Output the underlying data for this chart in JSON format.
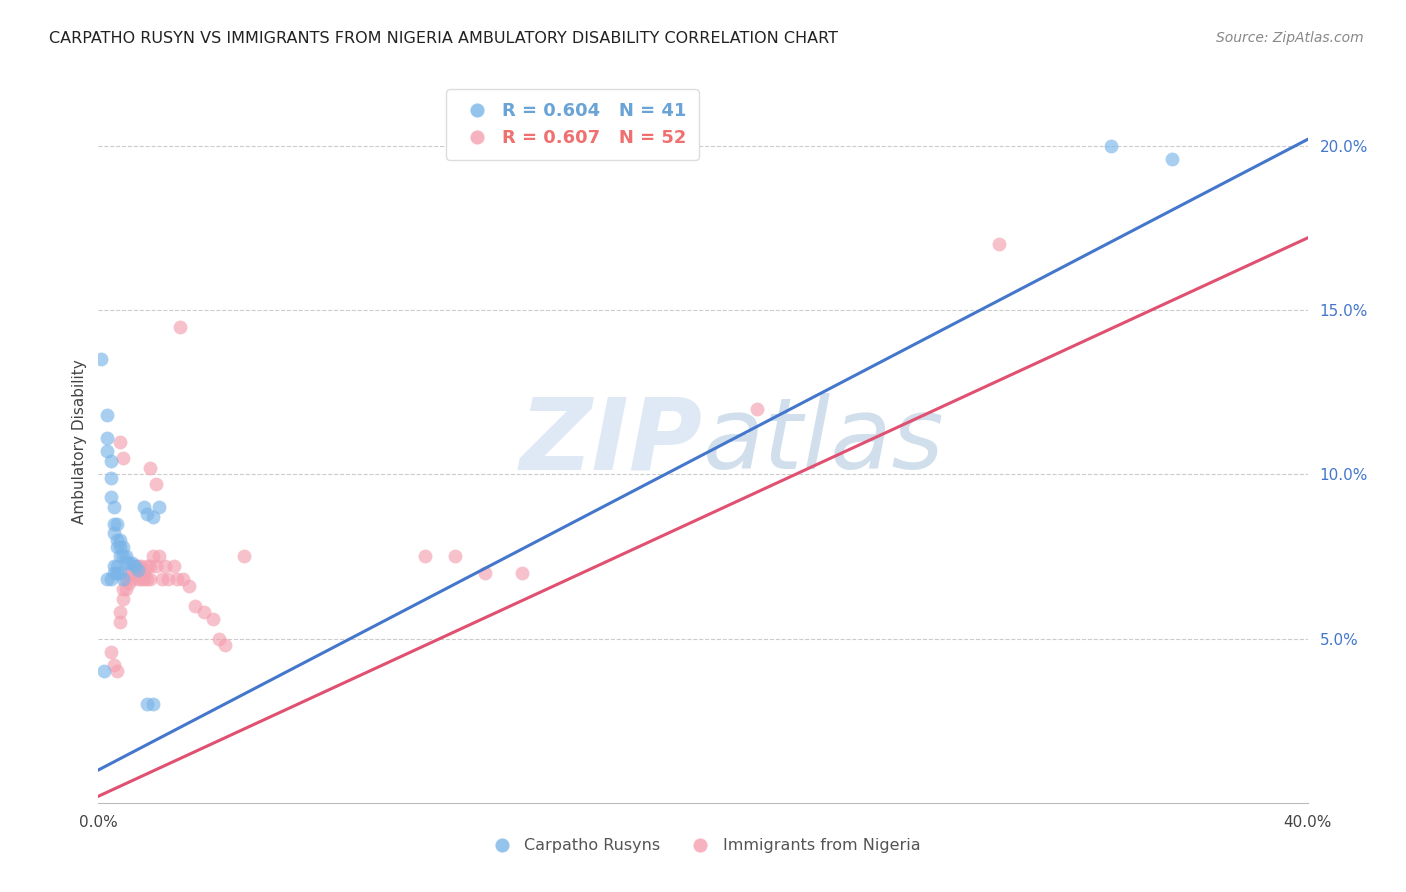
{
  "title": "CARPATHO RUSYN VS IMMIGRANTS FROM NIGERIA AMBULATORY DISABILITY CORRELATION CHART",
  "source": "Source: ZipAtlas.com",
  "ylabel": "Ambulatory Disability",
  "xlim": [
    0.0,
    0.4
  ],
  "ylim": [
    0.0,
    0.22
  ],
  "xticks": [
    0.0,
    0.05,
    0.1,
    0.15,
    0.2,
    0.25,
    0.3,
    0.35,
    0.4
  ],
  "xticklabels": [
    "0.0%",
    "",
    "",
    "",
    "",
    "",
    "",
    "",
    "40.0%"
  ],
  "yticks_right": [
    0.05,
    0.1,
    0.15,
    0.2
  ],
  "yticklabels_right": [
    "5.0%",
    "10.0%",
    "15.0%",
    "20.0%"
  ],
  "legend_entries": [
    {
      "label": "R = 0.604   N = 41",
      "color": "#6aa3d5"
    },
    {
      "label": "R = 0.607   N = 52",
      "color": "#f07070"
    }
  ],
  "legend_labels_bottom": [
    "Carpatho Rusyns",
    "Immigrants from Nigeria"
  ],
  "blue_color": "#7ab4e8",
  "pink_color": "#f4a0b0",
  "blue_line_color": "#4477cc",
  "pink_line_color": "#e05070",
  "watermark_zip": "ZIP",
  "watermark_atlas": "atlas",
  "blue_line": {
    "x0": 0.0,
    "x1": 0.4,
    "y0": 0.01,
    "y1": 0.202
  },
  "pink_line": {
    "x0": 0.0,
    "x1": 0.4,
    "y0": 0.002,
    "y1": 0.172
  },
  "blue_scatter": [
    [
      0.001,
      0.135
    ],
    [
      0.003,
      0.118
    ],
    [
      0.003,
      0.111
    ],
    [
      0.003,
      0.107
    ],
    [
      0.004,
      0.104
    ],
    [
      0.004,
      0.099
    ],
    [
      0.004,
      0.093
    ],
    [
      0.005,
      0.09
    ],
    [
      0.005,
      0.085
    ],
    [
      0.005,
      0.082
    ],
    [
      0.006,
      0.085
    ],
    [
      0.006,
      0.08
    ],
    [
      0.006,
      0.078
    ],
    [
      0.007,
      0.08
    ],
    [
      0.007,
      0.078
    ],
    [
      0.007,
      0.075
    ],
    [
      0.008,
      0.078
    ],
    [
      0.008,
      0.075
    ],
    [
      0.009,
      0.075
    ],
    [
      0.009,
      0.073
    ],
    [
      0.01,
      0.073
    ],
    [
      0.011,
      0.073
    ],
    [
      0.012,
      0.072
    ],
    [
      0.013,
      0.071
    ],
    [
      0.015,
      0.09
    ],
    [
      0.016,
      0.088
    ],
    [
      0.018,
      0.087
    ],
    [
      0.02,
      0.09
    ],
    [
      0.002,
      0.04
    ],
    [
      0.003,
      0.068
    ],
    [
      0.004,
      0.068
    ],
    [
      0.005,
      0.072
    ],
    [
      0.005,
      0.07
    ],
    [
      0.006,
      0.072
    ],
    [
      0.006,
      0.07
    ],
    [
      0.007,
      0.07
    ],
    [
      0.008,
      0.068
    ],
    [
      0.016,
      0.03
    ],
    [
      0.018,
      0.03
    ],
    [
      0.335,
      0.2
    ],
    [
      0.355,
      0.196
    ]
  ],
  "pink_scatter": [
    [
      0.004,
      0.046
    ],
    [
      0.005,
      0.042
    ],
    [
      0.006,
      0.04
    ],
    [
      0.007,
      0.058
    ],
    [
      0.007,
      0.055
    ],
    [
      0.008,
      0.065
    ],
    [
      0.008,
      0.062
    ],
    [
      0.009,
      0.068
    ],
    [
      0.009,
      0.065
    ],
    [
      0.01,
      0.07
    ],
    [
      0.01,
      0.067
    ],
    [
      0.011,
      0.07
    ],
    [
      0.011,
      0.068
    ],
    [
      0.012,
      0.072
    ],
    [
      0.012,
      0.07
    ],
    [
      0.013,
      0.072
    ],
    [
      0.013,
      0.068
    ],
    [
      0.014,
      0.072
    ],
    [
      0.014,
      0.068
    ],
    [
      0.015,
      0.07
    ],
    [
      0.015,
      0.068
    ],
    [
      0.016,
      0.072
    ],
    [
      0.016,
      0.068
    ],
    [
      0.017,
      0.072
    ],
    [
      0.017,
      0.068
    ],
    [
      0.018,
      0.075
    ],
    [
      0.019,
      0.072
    ],
    [
      0.02,
      0.075
    ],
    [
      0.021,
      0.068
    ],
    [
      0.022,
      0.072
    ],
    [
      0.023,
      0.068
    ],
    [
      0.025,
      0.072
    ],
    [
      0.026,
      0.068
    ],
    [
      0.028,
      0.068
    ],
    [
      0.03,
      0.066
    ],
    [
      0.032,
      0.06
    ],
    [
      0.035,
      0.058
    ],
    [
      0.038,
      0.056
    ],
    [
      0.04,
      0.05
    ],
    [
      0.042,
      0.048
    ],
    [
      0.007,
      0.11
    ],
    [
      0.008,
      0.105
    ],
    [
      0.017,
      0.102
    ],
    [
      0.019,
      0.097
    ],
    [
      0.027,
      0.145
    ],
    [
      0.048,
      0.075
    ],
    [
      0.108,
      0.075
    ],
    [
      0.118,
      0.075
    ],
    [
      0.128,
      0.07
    ],
    [
      0.14,
      0.07
    ],
    [
      0.218,
      0.12
    ],
    [
      0.298,
      0.17
    ]
  ]
}
